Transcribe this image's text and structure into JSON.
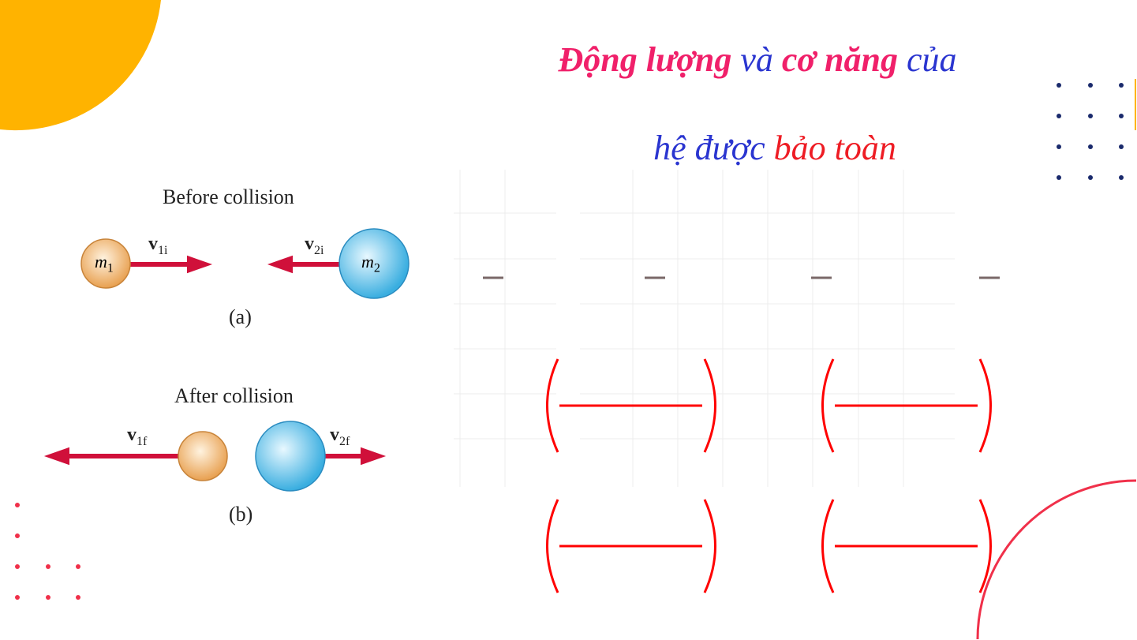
{
  "title": {
    "line1": [
      {
        "text": "Động lượng",
        "style": "pink"
      },
      {
        "text": " và ",
        "style": "blue"
      },
      {
        "text": "cơ năng",
        "style": "pink"
      },
      {
        "text": " của",
        "style": "blue"
      }
    ],
    "line2": [
      {
        "text": "hệ được ",
        "style": "blue"
      },
      {
        "text": "bảo toàn",
        "style": "red"
      }
    ]
  },
  "figure": {
    "before_label": "Before collision",
    "after_label": "After collision",
    "caption_a": "(a)",
    "caption_b": "(b)",
    "m1": "m",
    "m1_sub": "1",
    "m2": "m",
    "m2_sub": "2",
    "v1i": "v",
    "v1i_sub": "1i",
    "v2i": "v",
    "v2i_sub": "2i",
    "v1f": "v",
    "v1f_sub": "1f",
    "v2f": "v",
    "v2f_sub": "2f"
  },
  "colors": {
    "accent_orange": "#ffb300",
    "pink": "#f0206a",
    "blue": "#2a35d0",
    "red": "#ee1c24",
    "navy_dots": "#1a2a6c",
    "arrow": "#d0103a"
  }
}
